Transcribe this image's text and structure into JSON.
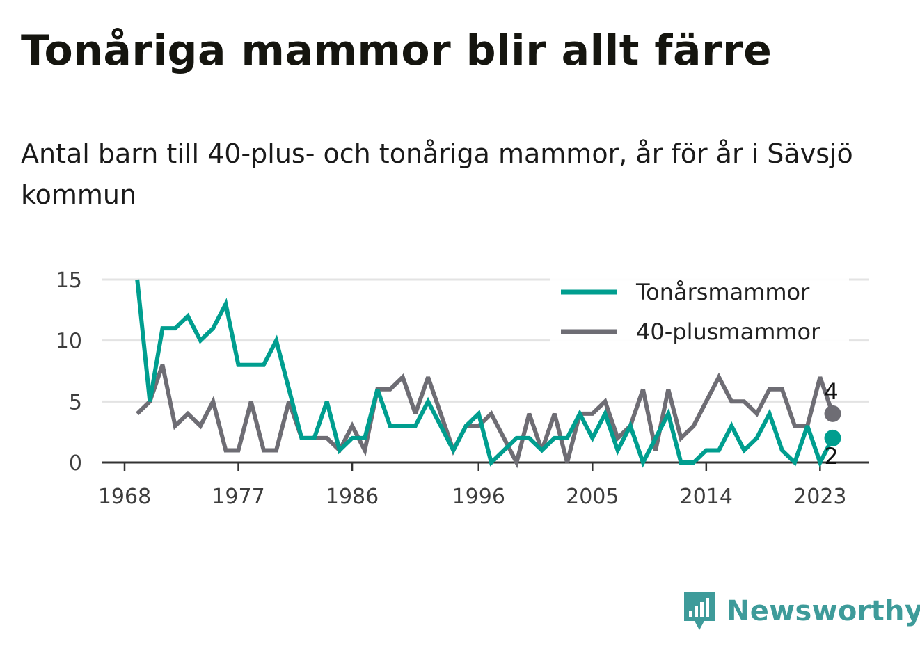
{
  "title": "Tonåriga mammor blir allt färre",
  "subtitle": "Antal barn till 40-plus- och tonåriga mammor, år för år i Sävsjö kommun",
  "brand": "Newsworthy",
  "colors": {
    "teens": "#009e8f",
    "forty": "#6e6d74",
    "grid": "#e3e3e3",
    "axis": "#333333",
    "brand": "#3e9b9a"
  },
  "chart_data": {
    "type": "line",
    "x": [
      1969,
      1970,
      1971,
      1972,
      1973,
      1974,
      1975,
      1976,
      1977,
      1978,
      1979,
      1980,
      1981,
      1982,
      1983,
      1984,
      1985,
      1986,
      1987,
      1988,
      1989,
      1990,
      1991,
      1992,
      1993,
      1994,
      1995,
      1996,
      1997,
      1998,
      1999,
      2000,
      2001,
      2002,
      2003,
      2004,
      2005,
      2006,
      2007,
      2008,
      2009,
      2010,
      2011,
      2012,
      2013,
      2014,
      2015,
      2016,
      2017,
      2018,
      2019,
      2020,
      2021,
      2022,
      2023,
      2024
    ],
    "series": [
      {
        "name": "Tonårsmammor",
        "color": "#009e8f",
        "values": [
          15,
          5,
          11,
          11,
          12,
          10,
          11,
          13,
          8,
          8,
          8,
          10,
          6,
          2,
          2,
          5,
          1,
          2,
          2,
          6,
          3,
          3,
          3,
          5,
          3,
          1,
          3,
          4,
          0,
          1,
          2,
          2,
          1,
          2,
          2,
          4,
          2,
          4,
          1,
          3,
          0,
          2,
          4,
          0,
          0,
          1,
          1,
          3,
          1,
          2,
          4,
          1,
          0,
          3,
          0,
          2
        ]
      },
      {
        "name": "40-plusmammor",
        "color": "#6e6d74",
        "values": [
          4,
          5,
          8,
          3,
          4,
          3,
          5,
          1,
          1,
          5,
          1,
          1,
          5,
          2,
          2,
          2,
          1,
          3,
          1,
          6,
          6,
          7,
          4,
          7,
          4,
          1,
          3,
          3,
          4,
          2,
          0,
          4,
          1,
          4,
          0,
          4,
          4,
          5,
          2,
          3,
          6,
          1,
          6,
          2,
          3,
          5,
          7,
          5,
          5,
          4,
          6,
          6,
          3,
          3,
          7,
          4
        ]
      }
    ],
    "x_ticks": [
      "1968",
      "1977",
      "1986",
      "1996",
      "2005",
      "2014",
      "2023"
    ],
    "y_ticks": [
      "0",
      "5",
      "10",
      "15"
    ],
    "ylim": [
      0,
      15
    ],
    "grid": true,
    "legend": "top-right",
    "end_labels": {
      "Tonårsmammor": "2",
      "40-plusmammor": "4"
    }
  }
}
